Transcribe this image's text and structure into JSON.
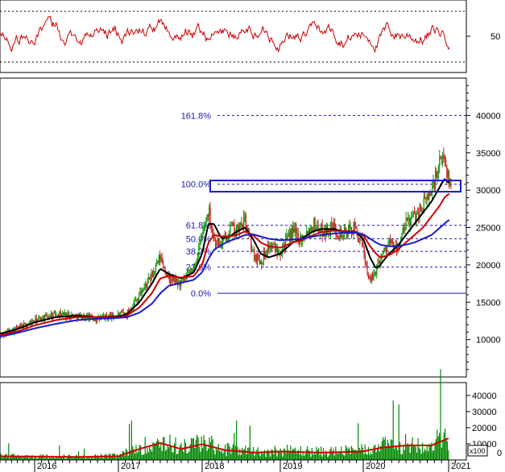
{
  "chart_data": [
    {
      "panel": "rsi",
      "type": "line",
      "y_ticks": [
        50
      ],
      "levels": [
        30,
        50,
        70
      ],
      "series": [
        {
          "color": "#cc0000"
        }
      ],
      "grid": false
    },
    {
      "panel": "price",
      "type": "candlestick",
      "y_ticks": [
        10000,
        15000,
        20000,
        25000,
        30000,
        35000,
        40000
      ],
      "ylim": [
        5000,
        45000
      ],
      "x_ticks": [
        "2016",
        "2017",
        "2018",
        "2019",
        "2020",
        "2021"
      ],
      "x": [
        2015.5,
        2015.75,
        2016.0,
        2016.25,
        2016.5,
        2016.75,
        2017.0,
        2017.1,
        2017.25,
        2017.4,
        2017.5,
        2017.6,
        2017.75,
        2017.9,
        2018.0,
        2018.08,
        2018.15,
        2018.25,
        2018.35,
        2018.45,
        2018.55,
        2018.65,
        2018.75,
        2018.85,
        2019.0,
        2019.15,
        2019.25,
        2019.4,
        2019.5,
        2019.65,
        2019.75,
        2019.9,
        2020.0,
        2020.08,
        2020.15,
        2020.2,
        2020.3,
        2020.4,
        2020.5,
        2020.6,
        2020.7,
        2020.8,
        2020.9,
        2020.95,
        2021.0
      ],
      "close": [
        10500,
        11500,
        12500,
        13500,
        13200,
        12800,
        13300,
        13500,
        16000,
        18500,
        21000,
        18000,
        17500,
        19500,
        24000,
        27500,
        23500,
        22500,
        25000,
        24500,
        26000,
        21500,
        20500,
        22500,
        22000,
        24500,
        23500,
        25500,
        24500,
        25000,
        24000,
        25000,
        22000,
        17500,
        19500,
        21000,
        23000,
        22000,
        25500,
        26500,
        28000,
        30000,
        33500,
        35000,
        31000
      ],
      "ma_series": [
        {
          "color": "#000000",
          "values": [
            10800,
            11400,
            12300,
            13000,
            13200,
            13000,
            13100,
            13400,
            15000,
            17500,
            19500,
            18800,
            18200,
            19000,
            21500,
            25500,
            25500,
            23500,
            23800,
            24500,
            25000,
            23500,
            21500,
            21000,
            21500,
            23000,
            23500,
            24500,
            24800,
            24800,
            24500,
            24500,
            23500,
            21000,
            19500,
            20000,
            21500,
            22500,
            24000,
            25500,
            27000,
            28500,
            30500,
            31500,
            31000
          ]
        },
        {
          "color": "#cc0000",
          "values": [
            10600,
            11100,
            11900,
            12600,
            13000,
            13000,
            13000,
            13200,
            14300,
            16200,
            18200,
            18500,
            18300,
            18500,
            20000,
            23000,
            24000,
            23800,
            23800,
            24000,
            24500,
            24000,
            23000,
            22500,
            22300,
            23000,
            23300,
            24000,
            24400,
            24600,
            24500,
            24400,
            24000,
            22500,
            21500,
            21000,
            21300,
            22000,
            23000,
            24000,
            25000,
            26500,
            28000,
            29000,
            29500
          ]
        },
        {
          "color": "#1a1acc",
          "values": [
            10400,
            10900,
            11500,
            12100,
            12600,
            12800,
            12900,
            13000,
            13600,
            14800,
            16200,
            17200,
            17600,
            18000,
            19000,
            20800,
            22000,
            22700,
            23200,
            23600,
            24000,
            24100,
            23800,
            23500,
            23300,
            23400,
            23500,
            23800,
            24000,
            24200,
            24300,
            24300,
            24100,
            23500,
            23000,
            22700,
            22500,
            22500,
            22700,
            23000,
            23500,
            24000,
            25000,
            25500,
            26000
          ]
        }
      ],
      "fibonacci": {
        "levels": [
          {
            "label": "0.0%",
            "value": 16200
          },
          {
            "label": "23.6%",
            "value": 19700
          },
          {
            "label": "38.2%",
            "value": 21800
          },
          {
            "label": "50.0%",
            "value": 23500
          },
          {
            "label": "61.8%",
            "value": 25300
          },
          {
            "label": "100.0%",
            "value": 30800
          },
          {
            "label": "161.8%",
            "value": 40000
          }
        ]
      },
      "resistance_box": {
        "y_low": 29800,
        "y_high": 31300,
        "x_start": 2018.0,
        "x_end": 2021.0
      }
    },
    {
      "panel": "volume",
      "type": "bar",
      "y_ticks": [
        10000,
        20000,
        30000,
        40000
      ],
      "ylim": [
        0,
        48000
      ],
      "unit_label": "x100",
      "series": [
        {
          "color": "#008800"
        },
        {
          "color": "#cc0000"
        }
      ]
    }
  ]
}
